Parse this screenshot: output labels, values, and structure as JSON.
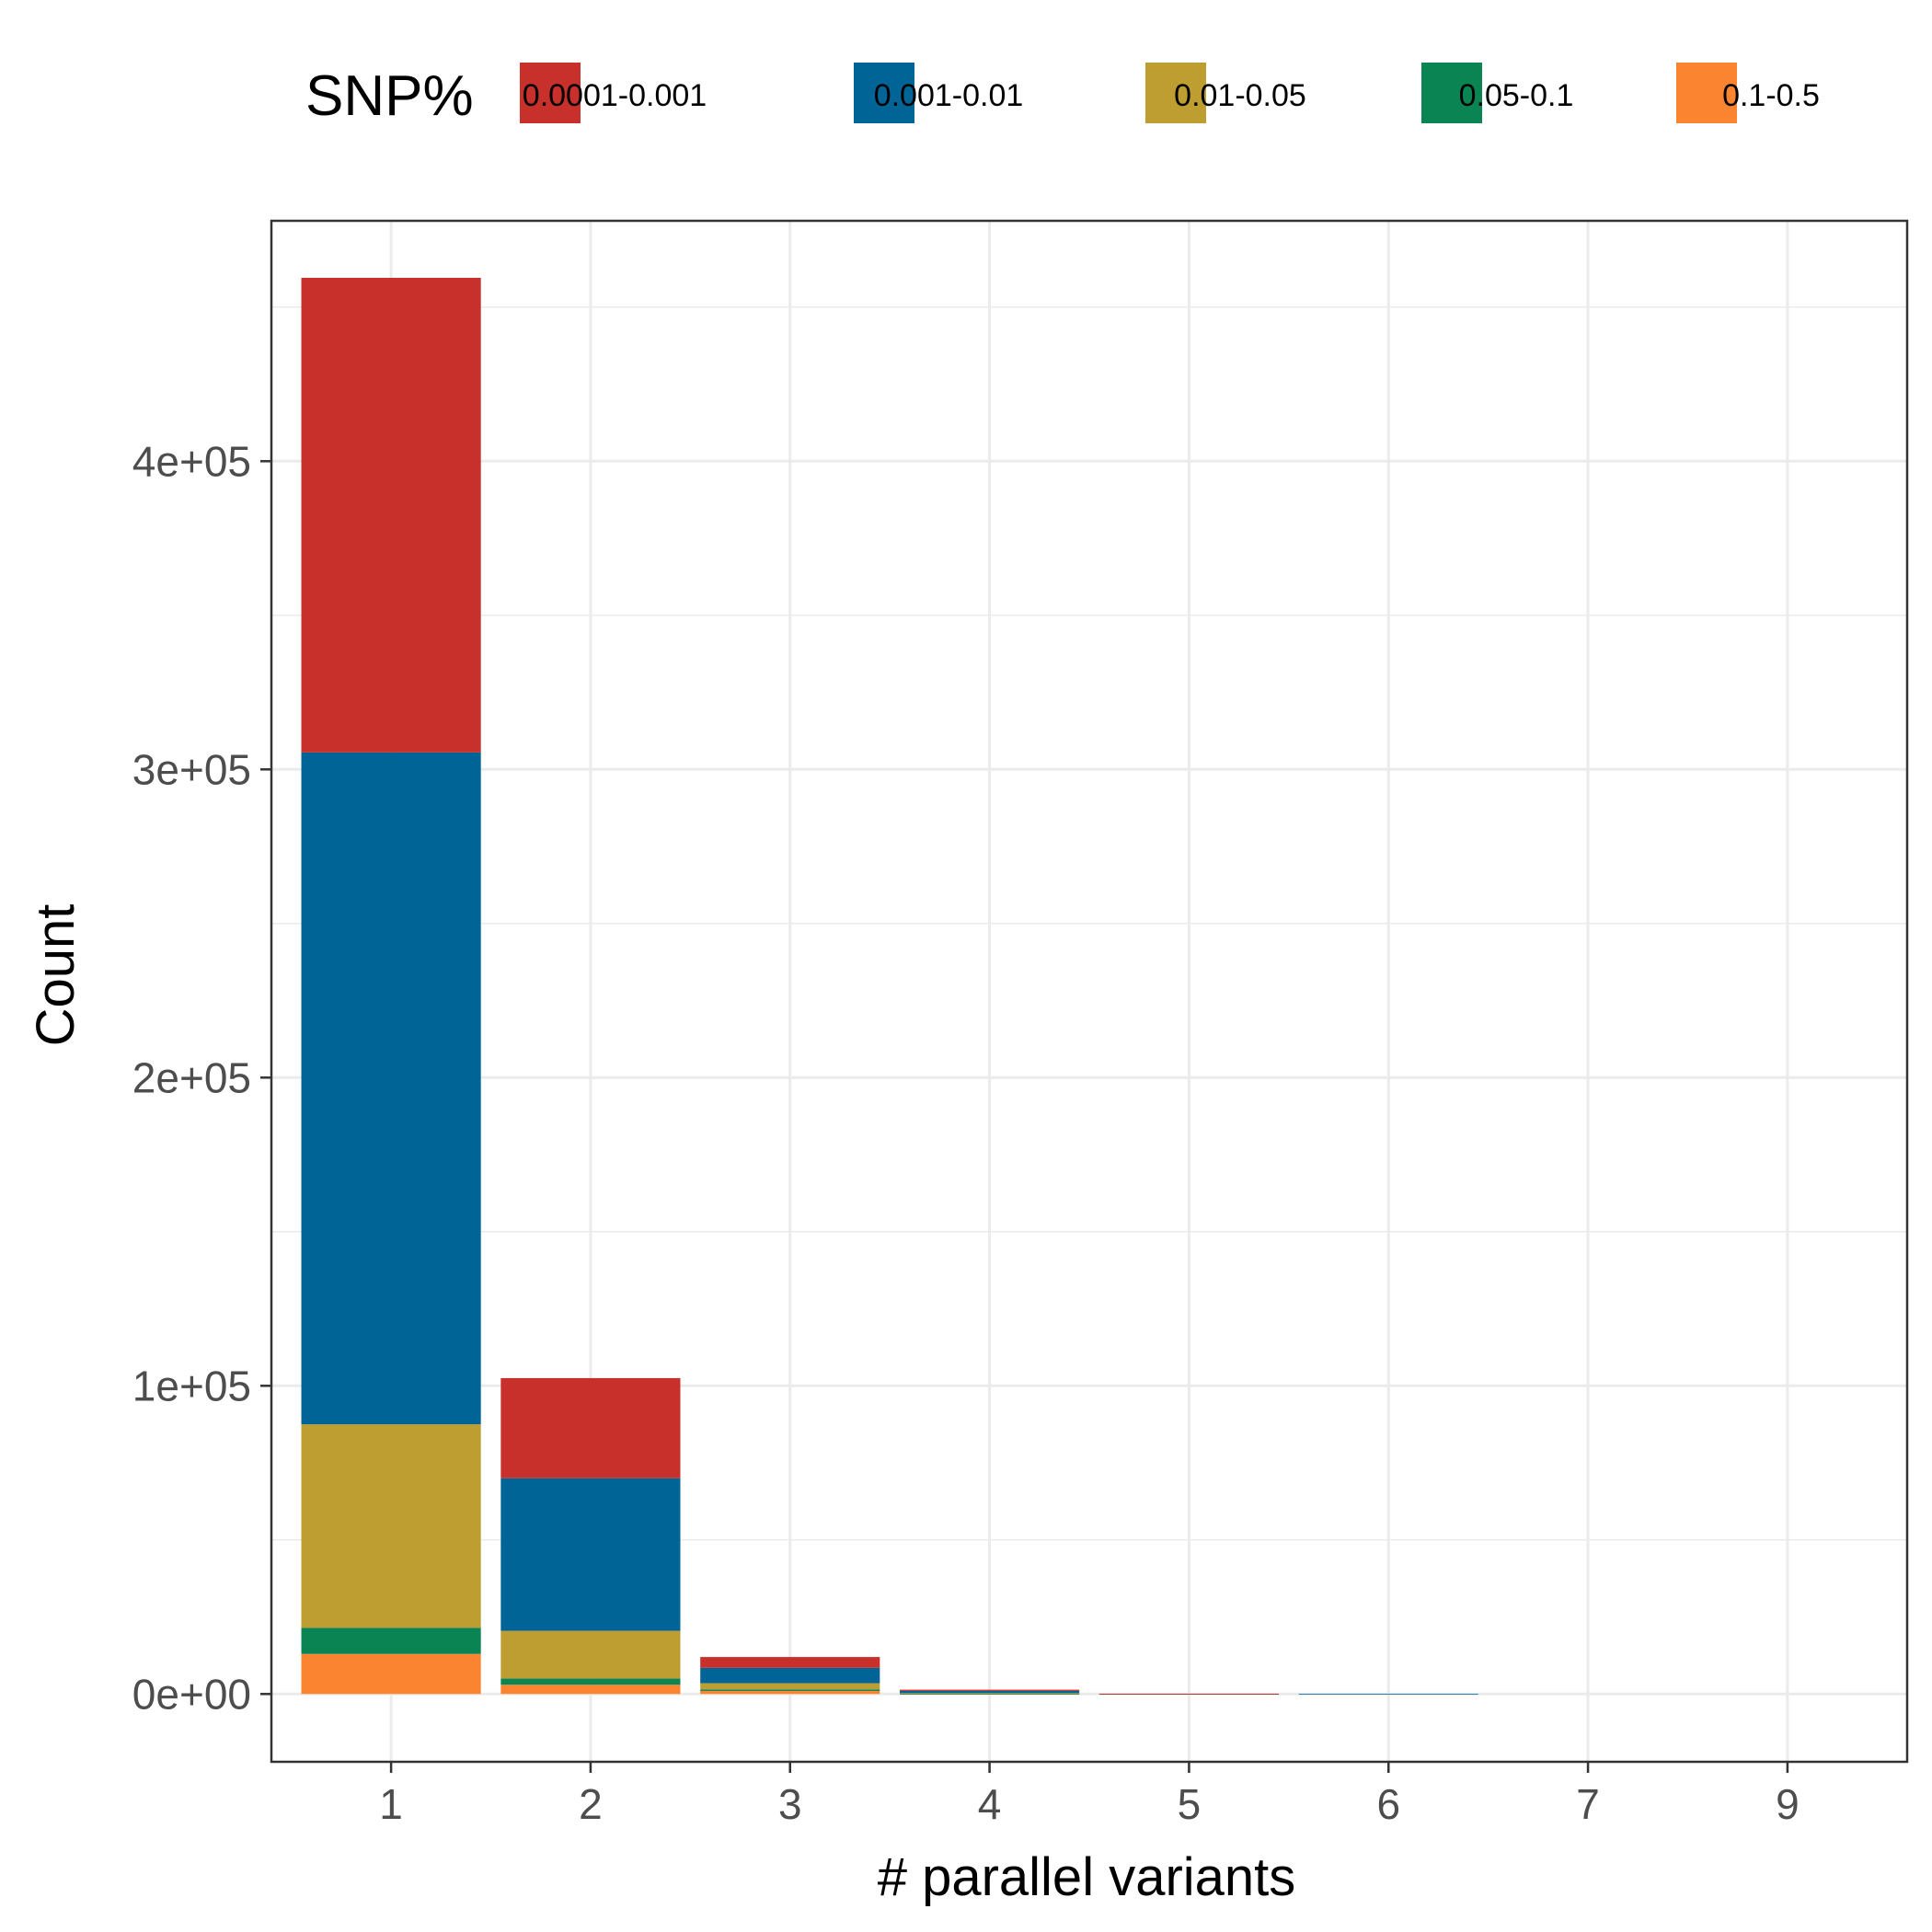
{
  "chart_data": {
    "type": "bar",
    "stacked": true,
    "title": "",
    "xlabel": "# parallel variants",
    "ylabel": "Count",
    "categories": [
      "1",
      "2",
      "3",
      "4",
      "5",
      "6",
      "7",
      "9"
    ],
    "ylim": [
      -22000,
      478000
    ],
    "yticks": [
      {
        "value": 0,
        "label": "0e+00"
      },
      {
        "value": 100000,
        "label": "1e+05"
      },
      {
        "value": 200000,
        "label": "2e+05"
      },
      {
        "value": 300000,
        "label": "3e+05"
      },
      {
        "value": 400000,
        "label": "4e+05"
      }
    ],
    "grid": true,
    "legend": {
      "title": "SNP%",
      "position": "top"
    },
    "series": [
      {
        "name": "0.0001-0.001",
        "color": "#C8302C",
        "values": [
          154000,
          32500,
          3500,
          400,
          30,
          10,
          5,
          2
        ]
      },
      {
        "name": "0.001-0.01",
        "color": "#006496",
        "values": [
          218000,
          49500,
          5000,
          700,
          50,
          15,
          5,
          2
        ]
      },
      {
        "name": "0.01-0.05",
        "color": "#BE9E30",
        "values": [
          66000,
          15500,
          2000,
          200,
          15,
          5,
          2,
          1
        ]
      },
      {
        "name": "0.05-0.1",
        "color": "#0B8454",
        "values": [
          8500,
          2000,
          500,
          50,
          5,
          2,
          1,
          0
        ]
      },
      {
        "name": "0.1-0.5",
        "color": "#FB8431",
        "values": [
          13000,
          3000,
          1000,
          50,
          5,
          2,
          1,
          0
        ]
      }
    ]
  }
}
